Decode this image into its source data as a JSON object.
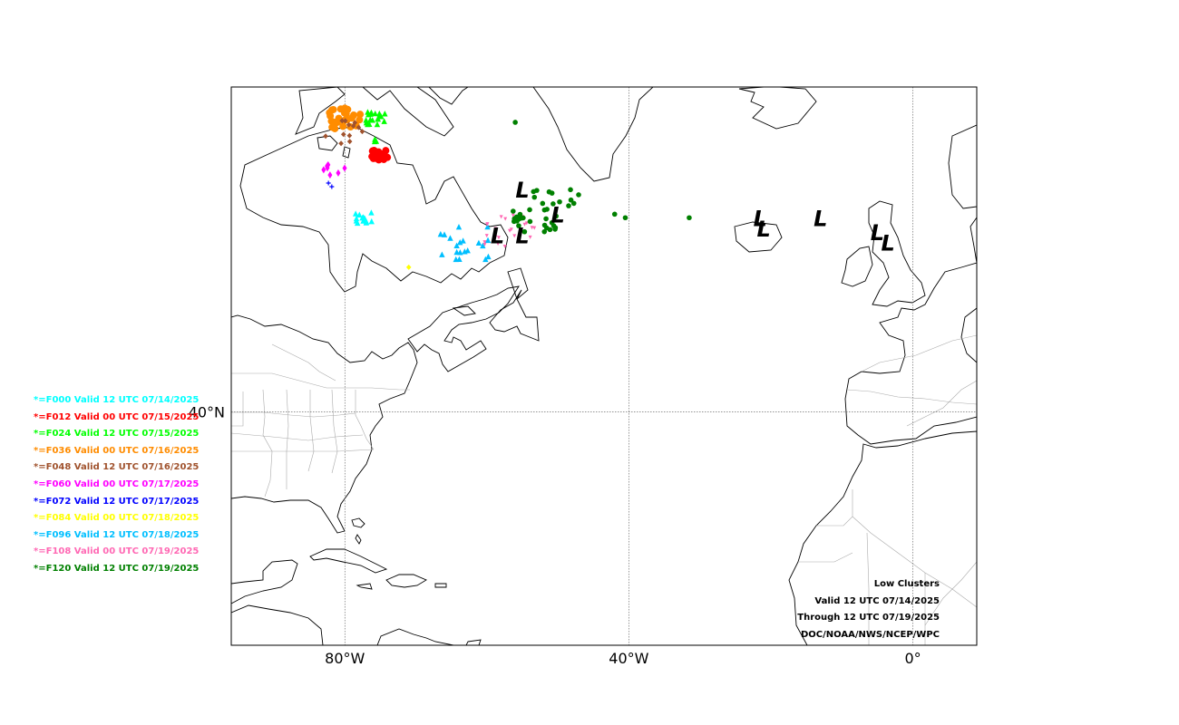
{
  "map": {
    "projection": "equirectangular",
    "extent": {
      "lon_min": -96,
      "lon_max": 9,
      "lat_min": 7,
      "lat_max": 86
    },
    "grid": {
      "lons": [
        -80,
        -40,
        0
      ],
      "lats": [
        40
      ]
    },
    "tick_labels": {
      "lat": [
        "40°N"
      ],
      "lon": [
        "80°W",
        "40°W",
        "0°"
      ]
    },
    "colors": {
      "F000": "#00ffff",
      "F012": "#ff0000",
      "F024": "#00ff00",
      "F036": "#ff8c00",
      "F048": "#a0522d",
      "F060": "#ff00ff",
      "F072": "#0000ff",
      "F084": "#ffff00",
      "F096": "#00bfff",
      "F108": "#ff69b4",
      "F120": "#008000"
    },
    "lows": [
      {
        "lon": -55,
        "lat": 71.5
      },
      {
        "lon": -50,
        "lat": 68
      },
      {
        "lon": -58.5,
        "lat": 65
      },
      {
        "lon": -55,
        "lat": 65
      },
      {
        "lon": -21.5,
        "lat": 67.5
      },
      {
        "lon": -21,
        "lat": 66
      },
      {
        "lon": -13,
        "lat": 67.5
      },
      {
        "lon": -5,
        "lat": 65.5
      },
      {
        "lon": -3.5,
        "lat": 64
      }
    ],
    "members": [
      {
        "f": "F000",
        "shape": "triangle",
        "lon": -77.4,
        "lat": 67.5,
        "n": 14,
        "spread": 1.6
      },
      {
        "f": "F012",
        "shape": "circle",
        "lon": -75.1,
        "lat": 76.3,
        "n": 24,
        "spread": 1.5
      },
      {
        "f": "F024",
        "shape": "triangle",
        "lon": -75.6,
        "lat": 81.6,
        "n": 20,
        "spread": 1.8
      },
      {
        "f": "F024",
        "shape": "triangle",
        "lon": -75.8,
        "lat": 78.5,
        "n": 3,
        "spread": 0.4
      },
      {
        "f": "F036",
        "shape": "circle",
        "lon": -79.8,
        "lat": 81.6,
        "n": 26,
        "spread": 3
      },
      {
        "f": "F048",
        "shape": "star",
        "lon": -80.2,
        "lat": 79.5,
        "n": 12,
        "spread": 3.5
      },
      {
        "f": "F060",
        "shape": "diamond",
        "lon": -81.5,
        "lat": 74.5,
        "n": 7,
        "spread": 2
      },
      {
        "f": "F072",
        "shape": "plus",
        "lon": -82,
        "lat": 72,
        "n": 2,
        "spread": 1
      },
      {
        "f": "F084",
        "shape": "star",
        "lon": -71,
        "lat": 60.5,
        "n": 1,
        "spread": 0
      },
      {
        "f": "F096",
        "shape": "triangle",
        "lon": -63,
        "lat": 64,
        "n": 20,
        "spread": 5
      },
      {
        "f": "F108",
        "shape": "triangle-down",
        "lon": -57,
        "lat": 65.5,
        "n": 22,
        "spread": 5
      },
      {
        "f": "F120",
        "shape": "pentagon",
        "lon": -51.5,
        "lat": 68.5,
        "n": 40,
        "spread": 6
      }
    ],
    "extra_f120_points": [
      {
        "lon": -56,
        "lat": 81
      },
      {
        "lon": -40.5,
        "lat": 67.5
      },
      {
        "lon": -31.5,
        "lat": 67.5
      },
      {
        "lon": -42,
        "lat": 68
      }
    ]
  },
  "legend": [
    {
      "key": "F000",
      "label": "*=F000 Valid 12 UTC 07/14/2025"
    },
    {
      "key": "F012",
      "label": "*=F012 Valid 00 UTC 07/15/2025"
    },
    {
      "key": "F024",
      "label": "*=F024 Valid 12 UTC 07/15/2025"
    },
    {
      "key": "F036",
      "label": "*=F036 Valid 00 UTC 07/16/2025"
    },
    {
      "key": "F048",
      "label": "*=F048 Valid 12 UTC 07/16/2025"
    },
    {
      "key": "F060",
      "label": "*=F060 Valid 00 UTC 07/17/2025"
    },
    {
      "key": "F072",
      "label": "*=F072 Valid 12 UTC 07/17/2025"
    },
    {
      "key": "F084",
      "label": "*=F084 Valid 00 UTC 07/18/2025"
    },
    {
      "key": "F096",
      "label": "*=F096 Valid 12 UTC 07/18/2025"
    },
    {
      "key": "F108",
      "label": "*=F108 Valid 00 UTC 07/19/2025"
    },
    {
      "key": "F120",
      "label": "*=F120 Valid 12 UTC 07/19/2025"
    }
  ],
  "info": {
    "line1": "Low Clusters",
    "line2": "Valid 12 UTC 07/14/2025",
    "line3": "Through 12 UTC 07/19/2025",
    "line4": "DOC/NOAA/NWS/NCEP/WPC"
  },
  "low_symbol": "L"
}
